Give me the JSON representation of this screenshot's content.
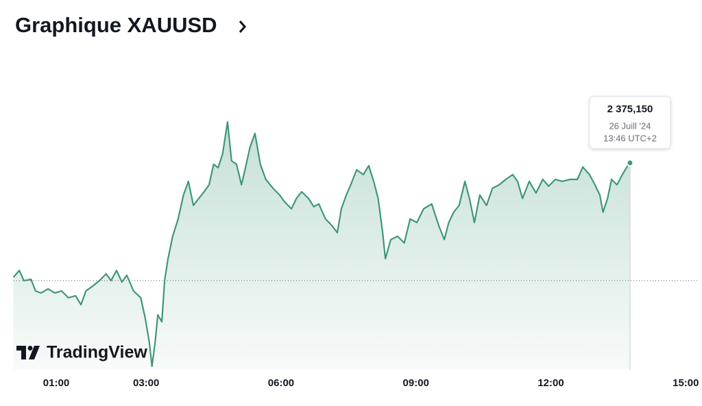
{
  "chart_data": {
    "type": "line",
    "title": "Graphique XAUUSD",
    "x": [
      0.05,
      0.18,
      0.28,
      0.44,
      0.54,
      0.66,
      0.82,
      0.97,
      1.12,
      1.27,
      1.43,
      1.55,
      1.66,
      1.81,
      1.96,
      2.11,
      2.22,
      2.34,
      2.46,
      2.57,
      2.72,
      2.88,
      2.98,
      3.07,
      3.13,
      3.2,
      3.26,
      3.35,
      3.41,
      3.48,
      3.59,
      3.71,
      3.83,
      3.94,
      4.05,
      4.17,
      4.29,
      4.4,
      4.5,
      4.6,
      4.7,
      4.81,
      4.9,
      5.01,
      5.12,
      5.21,
      5.31,
      5.42,
      5.54,
      5.66,
      5.82,
      5.97,
      6.08,
      6.23,
      6.34,
      6.46,
      6.61,
      6.73,
      6.84,
      6.99,
      7.14,
      7.25,
      7.34,
      7.45,
      7.55,
      7.68,
      7.83,
      7.95,
      8.06,
      8.16,
      8.26,
      8.32,
      8.44,
      8.59,
      8.74,
      8.87,
      9.02,
      9.17,
      9.35,
      9.51,
      9.63,
      9.73,
      9.84,
      9.96,
      10.09,
      10.19,
      10.3,
      10.42,
      10.57,
      10.7,
      10.85,
      11.0,
      11.15,
      11.26,
      11.37,
      11.52,
      11.67,
      11.82,
      11.95,
      12.1,
      12.25,
      12.43,
      12.59,
      12.71,
      12.86,
      12.98,
      13.09,
      13.16,
      13.26,
      13.35,
      13.47,
      13.59,
      13.7,
      13.76
    ],
    "values": [
      2364.87,
      2365.48,
      2364.56,
      2364.68,
      2363.63,
      2363.45,
      2363.82,
      2363.45,
      2363.63,
      2363.02,
      2363.2,
      2362.4,
      2363.63,
      2364.07,
      2364.56,
      2365.17,
      2364.56,
      2365.48,
      2364.44,
      2365.05,
      2363.63,
      2363.02,
      2361.17,
      2359.02,
      2356.86,
      2359.02,
      2361.48,
      2360.86,
      2364.56,
      2366.41,
      2368.56,
      2370.1,
      2372.26,
      2373.49,
      2371.33,
      2371.95,
      2372.56,
      2373.18,
      2375.03,
      2374.72,
      2375.95,
      2378.84,
      2375.33,
      2375.03,
      2373.18,
      2374.72,
      2376.57,
      2377.8,
      2375.03,
      2373.67,
      2372.87,
      2372.26,
      2371.64,
      2371.02,
      2371.95,
      2372.56,
      2371.95,
      2371.21,
      2371.46,
      2370.1,
      2369.48,
      2368.87,
      2371.02,
      2372.26,
      2373.18,
      2374.53,
      2374.1,
      2374.9,
      2373.49,
      2371.95,
      2368.87,
      2366.53,
      2368.25,
      2368.56,
      2367.95,
      2370.1,
      2369.79,
      2371.02,
      2371.46,
      2369.48,
      2368.25,
      2369.79,
      2370.72,
      2371.33,
      2373.49,
      2371.95,
      2369.79,
      2372.26,
      2371.33,
      2372.87,
      2373.18,
      2373.67,
      2374.1,
      2373.49,
      2371.95,
      2373.49,
      2372.44,
      2373.67,
      2373.06,
      2373.67,
      2373.49,
      2373.67,
      2373.67,
      2374.78,
      2374.1,
      2373.18,
      2372.26,
      2370.72,
      2371.95,
      2373.67,
      2373.18,
      2374.1,
      2374.84,
      2375.15
    ],
    "color": "#3f967a",
    "reference_line": 2364.56,
    "xlim": [
      0.055,
      15.3
    ],
    "ylim": [
      2356.55,
      2381.18
    ],
    "xticks": [
      {
        "value": 1,
        "label": "01:00"
      },
      {
        "value": 3,
        "label": "03:00"
      },
      {
        "value": 6,
        "label": "06:00"
      },
      {
        "value": 9,
        "label": "09:00"
      },
      {
        "value": 12,
        "label": "12:00"
      },
      {
        "value": 15,
        "label": "15:00"
      }
    ],
    "tooltip": {
      "value": 2375.15,
      "label": "2 375,150",
      "date": "26 Juill '24",
      "time": "13:46 UTC+2"
    },
    "watermark": "TradingView"
  }
}
